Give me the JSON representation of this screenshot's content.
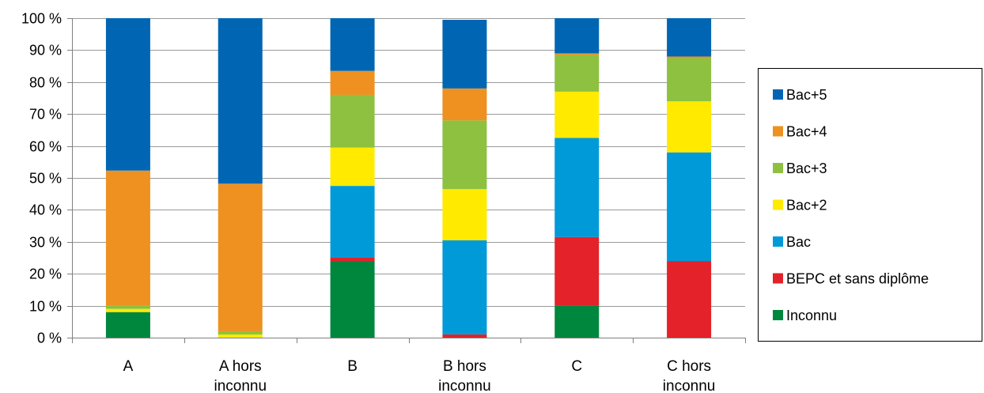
{
  "chart_data": {
    "type": "bar",
    "stacked": true,
    "percent": true,
    "categories": [
      [
        "A"
      ],
      [
        "A hors",
        "inconnu"
      ],
      [
        "B"
      ],
      [
        "B hors",
        "inconnu"
      ],
      [
        "C"
      ],
      [
        "C hors",
        "inconnu"
      ]
    ],
    "ylim": [
      0,
      100
    ],
    "yticks": [
      0,
      10,
      20,
      30,
      40,
      50,
      60,
      70,
      80,
      90,
      100
    ],
    "ytick_labels": [
      "0 %",
      "10 %",
      "20 %",
      "30 %",
      "40 %",
      "50 %",
      "60 %",
      "70 %",
      "80 %",
      "90 %",
      "100 %"
    ],
    "grid": true,
    "legend_position": "right",
    "series": [
      {
        "name": "Inconnu",
        "color": "#00873E",
        "values": [
          8,
          0,
          24,
          0,
          10,
          0
        ]
      },
      {
        "name": "BEPC et sans diplôme",
        "color": "#E3222A",
        "values": [
          0,
          0,
          1,
          1,
          21.5,
          24
        ]
      },
      {
        "name": "Bac",
        "color": "#009AD8",
        "values": [
          0,
          0,
          22.5,
          29.5,
          31,
          34
        ]
      },
      {
        "name": "Bac+2",
        "color": "#FFEA00",
        "values": [
          1,
          1,
          12,
          16,
          14.5,
          16
        ]
      },
      {
        "name": "Bac+3",
        "color": "#8DC13F",
        "values": [
          1,
          1,
          16.5,
          21.5,
          11.5,
          13.5
        ]
      },
      {
        "name": "Bac+4",
        "color": "#EE9121",
        "values": [
          42.3,
          46.2,
          7.5,
          10,
          0.5,
          0.5
        ]
      },
      {
        "name": "Bac+5",
        "color": "#0066B3",
        "values": [
          47.7,
          51.8,
          16.5,
          21.5,
          11,
          12
        ]
      }
    ],
    "legend_order": [
      "Bac+5",
      "Bac+4",
      "Bac+3",
      "Bac+2",
      "Bac",
      "BEPC et sans diplôme",
      "Inconnu"
    ]
  }
}
